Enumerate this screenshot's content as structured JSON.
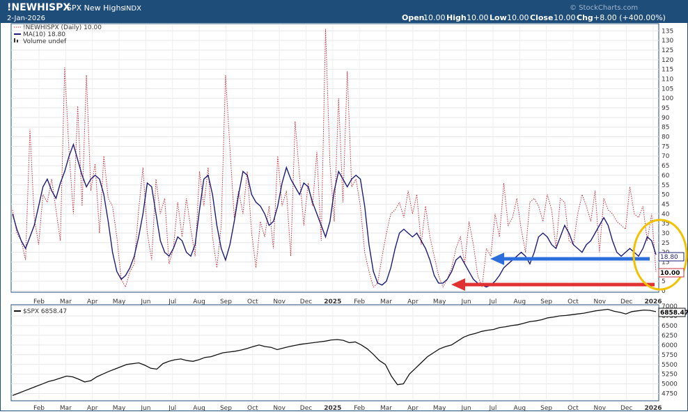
{
  "header": {
    "symbol": "!NEWHISPX",
    "name": "SPX New Highs",
    "exchange": "INDX",
    "date": "2-Jan-2026",
    "open_label": "Open",
    "open_value": "10.00",
    "high_label": "High",
    "high_value": "10.00",
    "low_label": "Low",
    "low_value": "10.00",
    "close_label": "Close",
    "close_value": "10.00",
    "chg_label": "Chg",
    "chg_value": "+8.00 (+400.00%)",
    "watermark": "© StockCharts.com"
  },
  "legend": {
    "main_series": "!NEWHISPX (Daily) 10.00",
    "ma_series": "MA(10) 18.80",
    "volume": "Volume undef",
    "spx_series": "$SPX 6858.47"
  },
  "colors": {
    "header_bg": "#1f4d7a",
    "frame": "#1f4d7a",
    "daily_series": "#c8323c",
    "ma_series": "#1c1c78",
    "spx_series": "#111111",
    "blue_arrow": "#2c6fdc",
    "red_arrow": "#e03232",
    "highlight_ellipse": "#f2c200"
  },
  "x_axis": {
    "month_labels": [
      "Feb",
      "Mar",
      "Apr",
      "May",
      "Jun",
      "Jul",
      "Aug",
      "Sep",
      "Oct",
      "Nov",
      "Dec",
      "2025",
      "Feb",
      "Mar",
      "Apr",
      "May",
      "Jun",
      "Jul",
      "Aug",
      "Sep",
      "Oct",
      "Nov",
      "Dec",
      "2026"
    ]
  },
  "chart_data": [
    {
      "type": "line",
      "title": "!NEWHISPX SPX New Highs INDX",
      "ylim": [
        0,
        138
      ],
      "yticks": [
        0,
        5,
        10,
        15,
        20,
        25,
        30,
        35,
        40,
        45,
        50,
        55,
        60,
        65,
        70,
        75,
        80,
        85,
        90,
        95,
        100,
        105,
        110,
        115,
        120,
        125,
        130,
        135
      ],
      "last_value_labels": [
        "18.80",
        "10.00"
      ],
      "series": [
        {
          "name": "!NEWHISPX (Daily)",
          "style": "dotted",
          "values": [
            42,
            30,
            26,
            16,
            84,
            38,
            24,
            50,
            46,
            58,
            42,
            26,
            116,
            72,
            40,
            96,
            44,
            112,
            52,
            66,
            30,
            70,
            48,
            44,
            28,
            6,
            2,
            10,
            14,
            42,
            64,
            30,
            16,
            58,
            40,
            48,
            14,
            22,
            46,
            28,
            48,
            32,
            18,
            62,
            44,
            64,
            28,
            12,
            34,
            112,
            74,
            38,
            52,
            40,
            62,
            30,
            12,
            36,
            28,
            44,
            22,
            70,
            44,
            52,
            18,
            88,
            60,
            34,
            56,
            44,
            72,
            26,
            136,
            66,
            36,
            100,
            46,
            114,
            54,
            58,
            44,
            20,
            10,
            2,
            4,
            18,
            30,
            40,
            42,
            46,
            38,
            52,
            40,
            50,
            24,
            44,
            28,
            18,
            8,
            2,
            6,
            12,
            22,
            28,
            14,
            36,
            24,
            8,
            2,
            22,
            18,
            40,
            28,
            56,
            34,
            38,
            48,
            32,
            20,
            46,
            48,
            44,
            36,
            50,
            42,
            22,
            48,
            46,
            26,
            24,
            40,
            50,
            44,
            36,
            52,
            20,
            48,
            42,
            40,
            36,
            34,
            32,
            54,
            40,
            38,
            44,
            26,
            40,
            10
          ]
        },
        {
          "name": "MA(10)",
          "style": "solid",
          "values": [
            40,
            32,
            26,
            22,
            28,
            34,
            44,
            54,
            58,
            52,
            48,
            56,
            62,
            70,
            76,
            68,
            60,
            54,
            58,
            60,
            58,
            50,
            36,
            20,
            10,
            6,
            8,
            12,
            18,
            28,
            40,
            56,
            54,
            40,
            26,
            20,
            18,
            22,
            28,
            26,
            20,
            18,
            24,
            42,
            58,
            60,
            50,
            34,
            22,
            16,
            24,
            36,
            50,
            62,
            60,
            50,
            46,
            44,
            40,
            34,
            36,
            44,
            56,
            64,
            58,
            54,
            50,
            56,
            54,
            46,
            40,
            34,
            28,
            36,
            52,
            62,
            58,
            54,
            58,
            60,
            58,
            44,
            24,
            10,
            4,
            3,
            5,
            12,
            22,
            30,
            32,
            30,
            28,
            30,
            26,
            22,
            16,
            8,
            4,
            4,
            6,
            10,
            16,
            18,
            14,
            10,
            6,
            4,
            3,
            2,
            3,
            5,
            8,
            12,
            14,
            16,
            18,
            20,
            18,
            14,
            20,
            28,
            30,
            28,
            24,
            22,
            28,
            34,
            30,
            24,
            22,
            20,
            24,
            26,
            30,
            34,
            38,
            34,
            26,
            20,
            18,
            20,
            22,
            20,
            18,
            22,
            28,
            26,
            18.8
          ]
        }
      ],
      "annotations": [
        "blue arrow pointing left",
        "red arrow pointing left",
        "yellow ellipse around latest values"
      ]
    },
    {
      "type": "line",
      "title": "$SPX",
      "ylim": [
        4600,
        7000
      ],
      "yticks": [
        4750,
        5000,
        5250,
        5500,
        5750,
        6000,
        6250,
        6500,
        6750,
        7000
      ],
      "last_value_labels": [
        "6858.47"
      ],
      "series": [
        {
          "name": "$SPX",
          "style": "solid",
          "values": [
            4700,
            4760,
            4820,
            4880,
            4940,
            5000,
            5060,
            5100,
            5150,
            5200,
            5180,
            5120,
            5050,
            5080,
            5180,
            5250,
            5320,
            5380,
            5440,
            5500,
            5520,
            5540,
            5480,
            5400,
            5380,
            5520,
            5580,
            5620,
            5640,
            5600,
            5580,
            5620,
            5680,
            5700,
            5750,
            5800,
            5820,
            5840,
            5870,
            5910,
            5960,
            6000,
            5960,
            5940,
            5880,
            5920,
            5960,
            5990,
            6020,
            6040,
            6060,
            6080,
            6100,
            6130,
            6140,
            6120,
            6060,
            6080,
            6000,
            5900,
            5760,
            5600,
            5500,
            5200,
            4980,
            5000,
            5250,
            5400,
            5550,
            5700,
            5800,
            5900,
            5960,
            6000,
            6100,
            6200,
            6260,
            6300,
            6350,
            6380,
            6400,
            6450,
            6470,
            6500,
            6520,
            6560,
            6600,
            6620,
            6650,
            6700,
            6720,
            6750,
            6760,
            6780,
            6800,
            6820,
            6850,
            6880,
            6900,
            6920,
            6870,
            6840,
            6800,
            6860,
            6880,
            6900,
            6890,
            6858.47
          ]
        }
      ]
    }
  ]
}
